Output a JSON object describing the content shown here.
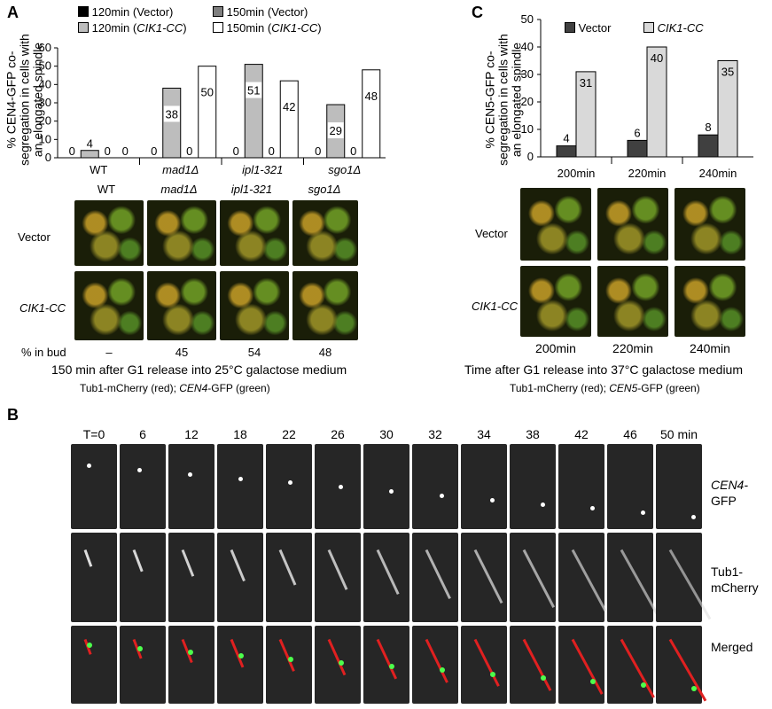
{
  "panelA": {
    "label": "A",
    "legend": [
      "120min (Vector)",
      "150min (Vector)",
      "120min (CIK1-CC)",
      "150min (CIK1-CC)"
    ],
    "ylabel_lines": [
      "% CEN4-GFP co-",
      "segregation in cells with",
      "an elongated spindle"
    ],
    "chart_data": {
      "type": "bar",
      "categories": [
        "WT",
        "mad1Δ",
        "ipl1-321",
        "sgo1Δ"
      ],
      "series": [
        {
          "name": "120min (Vector)",
          "values": [
            0,
            0,
            0,
            0
          ],
          "color": "#000000"
        },
        {
          "name": "120min (CIK1-CC)",
          "values": [
            4,
            38,
            51,
            29
          ],
          "color": "#bdbdbd"
        },
        {
          "name": "150min (Vector)",
          "values": [
            0,
            0,
            0,
            0
          ],
          "color": "#7f7f7f"
        },
        {
          "name": "150min (CIK1-CC)",
          "values": [
            0,
            50,
            42,
            48
          ],
          "color": "#ffffff"
        }
      ],
      "ylim": [
        0,
        60
      ],
      "yticks": [
        0,
        10,
        20,
        30,
        40,
        50,
        60
      ]
    },
    "col_heads": [
      "WT",
      "mad1Δ",
      "ipl1-321",
      "sgo1Δ"
    ],
    "row_heads": [
      "Vector",
      "CIK1-CC"
    ],
    "pct_label": "% in bud",
    "pct_values": [
      "–",
      "45",
      "54",
      "48"
    ],
    "caption": "150 min after G1 release into 25°C galactose medium",
    "subcaption": "Tub1-mCherry (red); CEN4-GFP (green)"
  },
  "panelC": {
    "label": "C",
    "legend": [
      "Vector",
      "CIK1-CC"
    ],
    "ylabel_lines": [
      "% CEN5-GFP co-",
      "segregation in cells with",
      "an elongated spindle"
    ],
    "chart_data": {
      "type": "bar",
      "categories": [
        "200min",
        "220min",
        "240min"
      ],
      "series": [
        {
          "name": "Vector",
          "values": [
            4,
            6,
            8
          ],
          "color": "#404040"
        },
        {
          "name": "CIK1-CC",
          "values": [
            31,
            40,
            35
          ],
          "color": "#d9d9d9"
        }
      ],
      "ylim": [
        0,
        50
      ],
      "yticks": [
        0,
        10,
        20,
        30,
        40,
        50
      ]
    },
    "row_heads": [
      "Vector",
      "CIK1-CC"
    ],
    "col_foot": [
      "200min",
      "220min",
      "240min"
    ],
    "caption": "Time after G1 release into 37°C galactose medium",
    "subcaption": "Tub1-mCherry (red); CEN5-GFP (green)"
  },
  "panelB": {
    "label": "B",
    "times": [
      "T=0",
      "6",
      "12",
      "18",
      "22",
      "26",
      "30",
      "32",
      "34",
      "38",
      "42",
      "46",
      "50 min"
    ],
    "row_labels": [
      "CEN4-\nGFP",
      "Tub1-\nmCherry",
      "Merged"
    ],
    "row1": "CEN4-",
    "row1b": "GFP",
    "row2": "Tub1-",
    "row2b": "mCherry",
    "row3": "Merged"
  }
}
